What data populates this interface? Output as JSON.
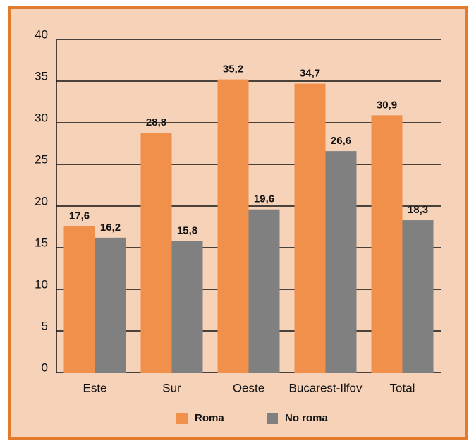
{
  "chart_data": {
    "type": "bar",
    "categories": [
      "Este",
      "Sur",
      "Oeste",
      "Bucarest-Ilfov",
      "Total"
    ],
    "series": [
      {
        "name": "Roma",
        "color": "#f0904b",
        "values": [
          17.6,
          28.8,
          35.2,
          34.7,
          30.9
        ],
        "value_labels": [
          "17,6",
          "28,8",
          "35,2",
          "34,7",
          "30,9"
        ]
      },
      {
        "name": "No roma",
        "color": "#808080",
        "values": [
          16.2,
          15.8,
          19.6,
          26.6,
          18.3
        ],
        "value_labels": [
          "16,2",
          "15,8",
          "19,6",
          "26,6",
          "18,3"
        ]
      }
    ],
    "ylim": [
      0,
      40
    ],
    "yticks": [
      0,
      5,
      10,
      15,
      20,
      25,
      30,
      35,
      40
    ],
    "grid": true,
    "legend": "bottom"
  }
}
